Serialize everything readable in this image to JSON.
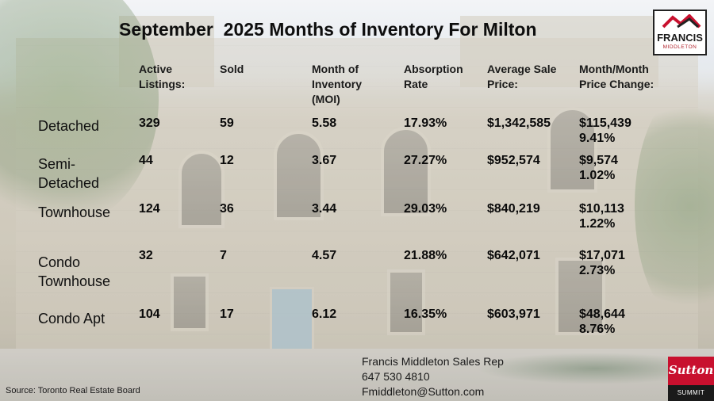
{
  "title": "September  2025 Months of Inventory For Milton",
  "headers": {
    "active": [
      "Active",
      "Listings:"
    ],
    "sold": "Sold",
    "moi": [
      "Month of",
      "Inventory",
      "(MOI)"
    ],
    "absorption": [
      "Absorption",
      "Rate"
    ],
    "avg_price": [
      "Average Sale",
      "Price:"
    ],
    "mom_change": [
      "Month/Month",
      "Price Change:"
    ]
  },
  "rows": [
    {
      "label": [
        "Detached"
      ],
      "active": "329",
      "sold": "59",
      "moi": "5.58",
      "absorption": "17.93%",
      "avg_price": "$1,342,585",
      "change_amount": "$115,439",
      "change_pct": "9.41%"
    },
    {
      "label": [
        "Semi-",
        "Detached"
      ],
      "active": "44",
      "sold": "12",
      "moi": "3.67",
      "absorption": "27.27%",
      "avg_price": "$952,574",
      "change_amount": "$9,574",
      "change_pct": "1.02%"
    },
    {
      "label": [
        "Townhouse"
      ],
      "active": "124",
      "sold": "36",
      "moi": "3.44",
      "absorption": "29.03%",
      "avg_price": "$840,219",
      "change_amount": "$10,113",
      "change_pct": "1.22%"
    },
    {
      "label": [
        "Condo",
        "Townhouse"
      ],
      "active": "32",
      "sold": "7",
      "moi": "4.57",
      "absorption": "21.88%",
      "avg_price": "$642,071",
      "change_amount": "$17,071",
      "change_pct": "2.73%"
    },
    {
      "label": [
        "Condo Apt"
      ],
      "active": "104",
      "sold": "17",
      "moi": "6.12",
      "absorption": "16.35%",
      "avg_price": "$603,971",
      "change_amount": "$48,644",
      "change_pct": "8.76%"
    }
  ],
  "logo": {
    "name": "FRANCIS",
    "sub": "MIDDLETON"
  },
  "contact": {
    "name": "Francis Middleton Sales Rep",
    "phone": "647 530 4810",
    "email": "Fmiddleton@Sutton.com"
  },
  "source": "Source: Toronto Real Estate Board",
  "brand": {
    "name": "Sutton",
    "sub": "SUMMIT",
    "color": "#c8102e"
  }
}
